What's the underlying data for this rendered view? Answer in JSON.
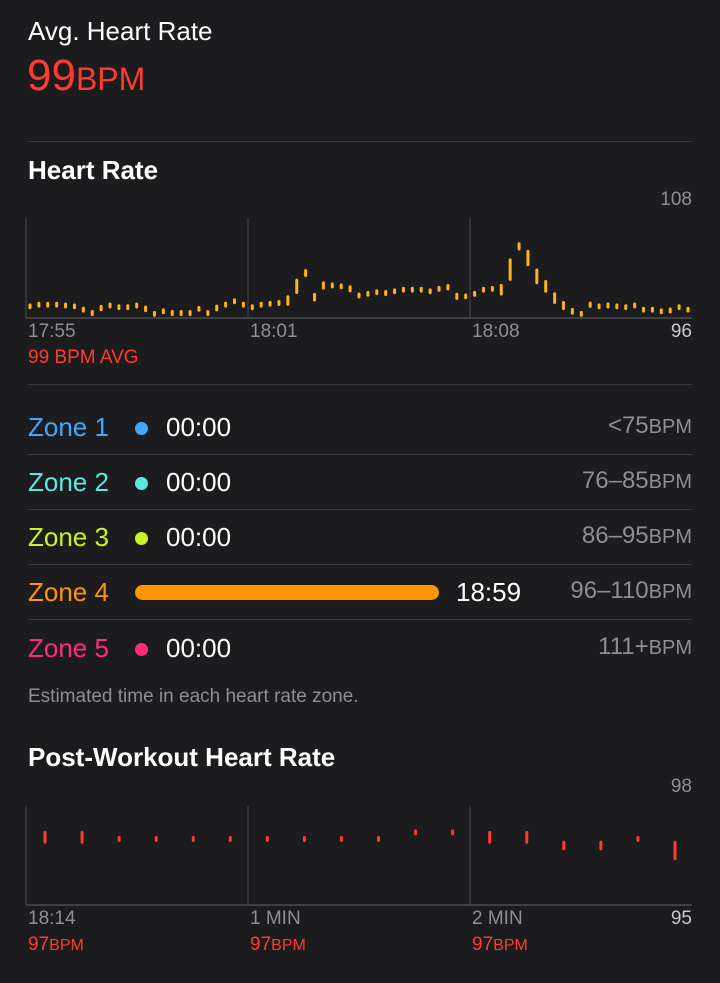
{
  "summary": {
    "title": "Avg. Heart Rate",
    "value": "99",
    "unit": "BPM"
  },
  "heart_rate": {
    "title": "Heart Rate",
    "y_max_label": "108",
    "y_min_label": "96",
    "x_labels": [
      "17:55",
      "18:01",
      "18:08"
    ],
    "avg_label": "99 BPM AVG",
    "bar_color": "#ffb319",
    "chart_data": {
      "type": "scatter",
      "ylim": [
        96,
        108
      ],
      "values": [
        97.4,
        97.6,
        97.6,
        97.6,
        97.5,
        97.4,
        97.0,
        96.6,
        97.2,
        97.5,
        97.3,
        97.3,
        97.5,
        97.1,
        96.5,
        96.8,
        96.6,
        96.6,
        96.6,
        97.1,
        96.6,
        97.2,
        97.6,
        98.0,
        97.6,
        97.3,
        97.6,
        97.7,
        97.8,
        98.1,
        99.8,
        101.4,
        98.5,
        99.9,
        99.9,
        99.8,
        99.5,
        98.7,
        98.9,
        99.1,
        99.0,
        99.2,
        99.4,
        99.4,
        99.4,
        99.2,
        99.5,
        99.7,
        98.6,
        98.6,
        98.9,
        99.4,
        99.5,
        99.4,
        101.8,
        104.6,
        103.2,
        101.0,
        99.8,
        98.4,
        97.5,
        96.8,
        96.5,
        97.6,
        97.4,
        97.5,
        97.4,
        97.3,
        97.5,
        97.0,
        97.0,
        96.8,
        96.9,
        97.3,
        97.0
      ]
    }
  },
  "zones": {
    "items": [
      {
        "name": "Zone 1",
        "time": "00:00",
        "range": "<75",
        "unit": "BPM",
        "color": "#40a8ff"
      },
      {
        "name": "Zone 2",
        "time": "00:00",
        "range": "76–85",
        "unit": "BPM",
        "color": "#5ee6e0"
      },
      {
        "name": "Zone 3",
        "time": "00:00",
        "range": "86–95",
        "unit": "BPM",
        "color": "#c9f227"
      },
      {
        "name": "Zone 4",
        "time": "18:59",
        "range": "96–110",
        "unit": "BPM",
        "color": "#ff9500",
        "fill": 1.0
      },
      {
        "name": "Zone 5",
        "time": "00:00",
        "range": "111+",
        "unit": "BPM",
        "color": "#ff2d78"
      }
    ],
    "note": "Estimated time in each heart rate zone."
  },
  "post_workout": {
    "title": "Post-Workout Heart Rate",
    "y_max_label": "98",
    "y_min_label": "95",
    "x_labels": [
      "18:14",
      "1 MIN",
      "2 MIN"
    ],
    "bpm_values": [
      "97",
      "97",
      "97"
    ],
    "bpm_unit": "BPM",
    "bar_color": "#ff3b30",
    "chart_data": {
      "type": "scatter",
      "ylim": [
        95,
        98
      ],
      "values": [
        [
          96.9,
          97.2
        ],
        [
          96.9,
          97.2
        ],
        [
          97.0,
          97.0
        ],
        [
          97.0,
          97.0
        ],
        [
          97.0,
          97.0
        ],
        [
          97.0,
          97.0
        ],
        [
          97.0,
          97.0
        ],
        [
          97.0,
          97.0
        ],
        [
          97.0,
          97.0
        ],
        [
          97.0,
          97.0
        ],
        [
          97.2,
          97.2
        ],
        [
          97.2,
          97.2
        ],
        [
          96.9,
          97.2
        ],
        [
          96.9,
          97.2
        ],
        [
          96.7,
          96.9
        ],
        [
          96.7,
          96.9
        ],
        [
          97.0,
          97.0
        ],
        [
          96.4,
          96.9
        ]
      ]
    }
  }
}
